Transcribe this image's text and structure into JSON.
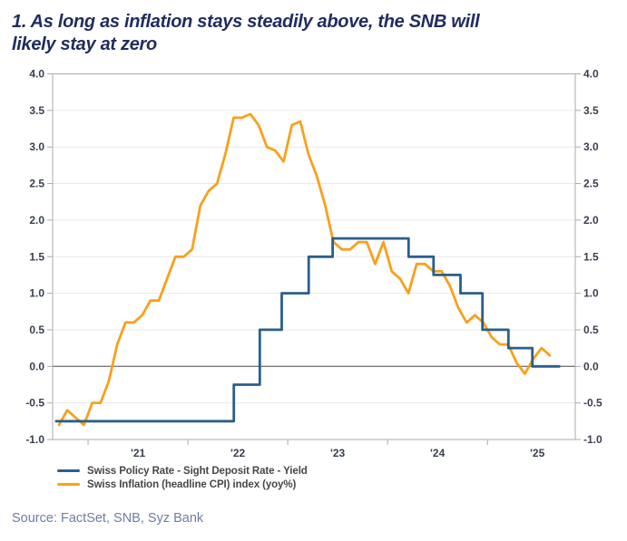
{
  "header": {
    "title_line1": "1. As long as inflation stays steadily above, the SNB will",
    "title_line2": "likely stay at zero"
  },
  "legend": {
    "policy_rate_label": "Swiss Policy Rate - Sight Deposit Rate - Yield",
    "inflation_label": "Swiss Inflation (headline CPI) index (yoy%)"
  },
  "source_note": "Source: FactSet, SNB, Syz Bank",
  "colors": {
    "policy_blue": "#2A5F8C",
    "inflation_orange": "#F9A01B",
    "title_navy": "#1F2C5F",
    "axis_text": "#3A4050",
    "legend_text": "#474747",
    "source_text": "#6F7DA6",
    "grid": "#E9E9E9",
    "zero_line": "#787878",
    "spine": "#ABABAB"
  },
  "chart_data": {
    "type": "line",
    "title": "1. As long as inflation stays steadily above, the SNB will likely stay at zero",
    "xlabel": "",
    "ylabel": "",
    "ylim": [
      -1.0,
      4.0
    ],
    "x_range": [
      2020.645,
      2025.88
    ],
    "grid": true,
    "legend_position": "bottom-left",
    "yticks": [
      -1.0,
      -0.5,
      0.0,
      0.5,
      1.0,
      1.5,
      2.0,
      2.5,
      3.0,
      3.5,
      4.0
    ],
    "year_ticks": [
      2021,
      2022,
      2023,
      2024,
      2025
    ],
    "year_labels": [
      {
        "t": 2021.5,
        "text": "'21"
      },
      {
        "t": 2022.5,
        "text": "'22"
      },
      {
        "t": 2023.5,
        "text": "'23"
      },
      {
        "t": 2024.5,
        "text": "'24"
      },
      {
        "t": 2025.5,
        "text": "'25"
      }
    ],
    "series": [
      {
        "name": "Swiss Policy Rate - Sight Deposit Rate - Yield",
        "type": "step",
        "color_key": "policy_blue",
        "changes": [
          [
            2020.68,
            -0.75
          ],
          [
            2022.46,
            -0.25
          ],
          [
            2022.72,
            0.5
          ],
          [
            2022.94,
            1.0
          ],
          [
            2023.21,
            1.5
          ],
          [
            2023.45,
            1.75
          ],
          [
            2024.21,
            1.5
          ],
          [
            2024.46,
            1.25
          ],
          [
            2024.73,
            1.0
          ],
          [
            2024.95,
            0.5
          ],
          [
            2025.21,
            0.25
          ],
          [
            2025.45,
            0.0
          ]
        ],
        "end_t": 2025.72
      },
      {
        "name": "Swiss Inflation (headline CPI) index (yoy%)",
        "type": "line",
        "color_key": "inflation_orange",
        "start_year": 2020,
        "start_month": 9,
        "monthly_values": [
          -0.8,
          -0.6,
          -0.7,
          -0.8,
          -0.5,
          -0.5,
          -0.2,
          0.3,
          0.6,
          0.6,
          0.7,
          0.9,
          0.9,
          1.2,
          1.5,
          1.5,
          1.6,
          2.2,
          2.4,
          2.5,
          2.9,
          3.4,
          3.4,
          3.45,
          3.3,
          3.0,
          2.95,
          2.8,
          3.3,
          3.35,
          2.9,
          2.6,
          2.2,
          1.7,
          1.6,
          1.6,
          1.7,
          1.7,
          1.4,
          1.7,
          1.3,
          1.2,
          1.0,
          1.4,
          1.4,
          1.3,
          1.3,
          1.1,
          0.8,
          0.6,
          0.7,
          0.6,
          0.4,
          0.3,
          0.3,
          0.05,
          -0.1,
          0.1,
          0.25,
          0.15
        ]
      }
    ]
  }
}
